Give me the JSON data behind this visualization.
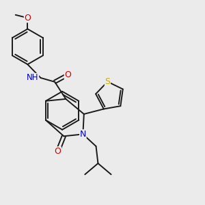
{
  "bg_color": "#ebebeb",
  "bond_color": "#1a1a1a",
  "bond_width": 1.4,
  "atom_colors": {
    "N": "#0000cc",
    "O": "#cc0000",
    "S": "#ccaa00",
    "H": "#555555"
  },
  "figsize": [
    3.0,
    3.0
  ],
  "dpi": 100
}
